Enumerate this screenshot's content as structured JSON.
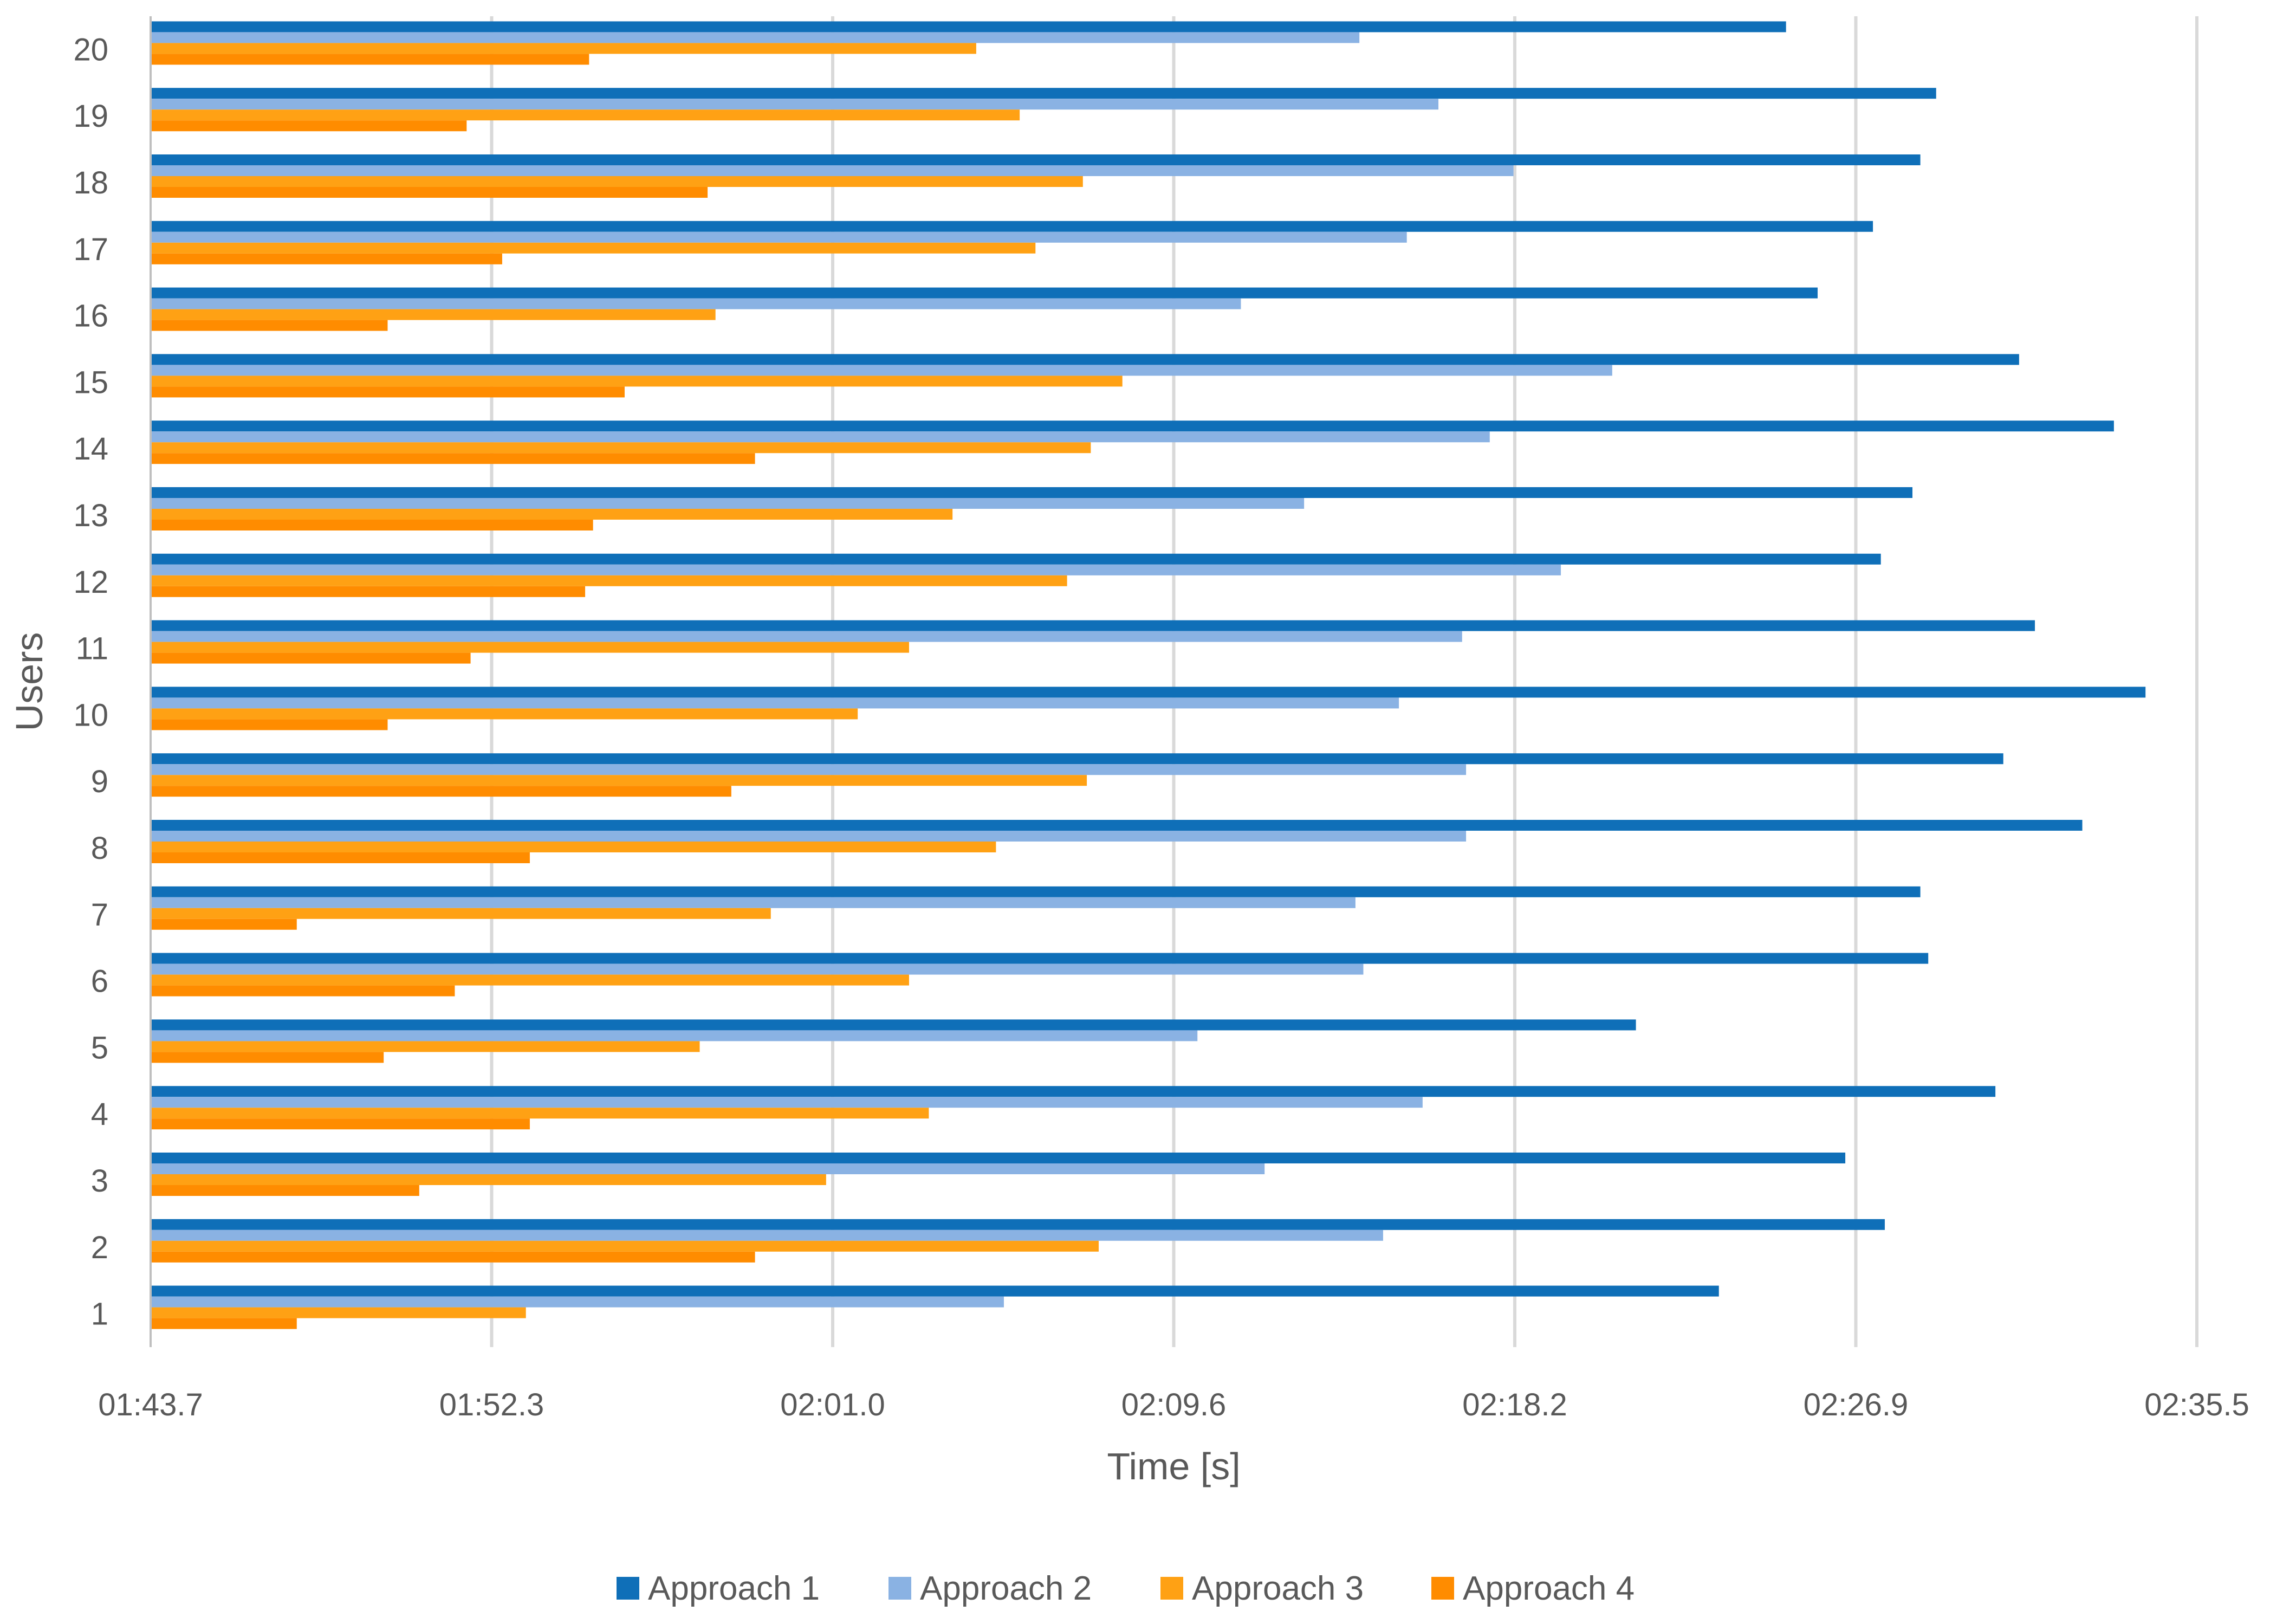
{
  "chart_data": {
    "type": "bar",
    "orientation": "horizontal",
    "xlabel": "Time [s]",
    "ylabel": "Users",
    "x_ticks": [
      "01:43.7",
      "01:52.3",
      "02:01.0",
      "02:09.6",
      "02:18.2",
      "02:26.9",
      "02:35.5"
    ],
    "xlim_seconds": [
      103.7,
      155.5
    ],
    "grid": "vertical",
    "legend_position": "bottom",
    "categories": [
      "1",
      "2",
      "3",
      "4",
      "5",
      "6",
      "7",
      "8",
      "9",
      "10",
      "11",
      "12",
      "13",
      "14",
      "15",
      "16",
      "17",
      "18",
      "19",
      "20"
    ],
    "series": [
      {
        "name": "Approach 1",
        "color": "#0F6FB8",
        "values": [
          143.4,
          147.6,
          146.6,
          150.4,
          141.3,
          148.7,
          148.5,
          152.6,
          150.6,
          154.2,
          151.4,
          147.5,
          148.3,
          153.4,
          151.0,
          145.9,
          147.3,
          148.5,
          148.9,
          145.1
        ]
      },
      {
        "name": "Approach 2",
        "color": "#8AB2E3",
        "values": [
          125.3,
          134.9,
          131.9,
          135.9,
          130.2,
          134.4,
          134.2,
          137.0,
          137.0,
          135.3,
          136.9,
          139.4,
          132.9,
          137.6,
          140.7,
          131.3,
          135.5,
          138.2,
          136.3,
          134.3
        ]
      },
      {
        "name": "Approach 3",
        "color": "#FFA114",
        "values": [
          113.2,
          127.7,
          120.8,
          123.4,
          117.6,
          122.9,
          119.4,
          125.1,
          127.4,
          121.6,
          122.9,
          126.9,
          124.0,
          127.5,
          128.3,
          118.0,
          126.1,
          127.3,
          125.7,
          124.6
        ]
      },
      {
        "name": "Approach 4",
        "color": "#FF8C00",
        "values": [
          107.4,
          119.0,
          110.5,
          113.3,
          109.6,
          111.4,
          107.4,
          113.3,
          118.4,
          109.7,
          111.8,
          114.7,
          114.9,
          119.0,
          115.7,
          109.7,
          112.6,
          117.8,
          111.7,
          114.8
        ]
      }
    ]
  }
}
